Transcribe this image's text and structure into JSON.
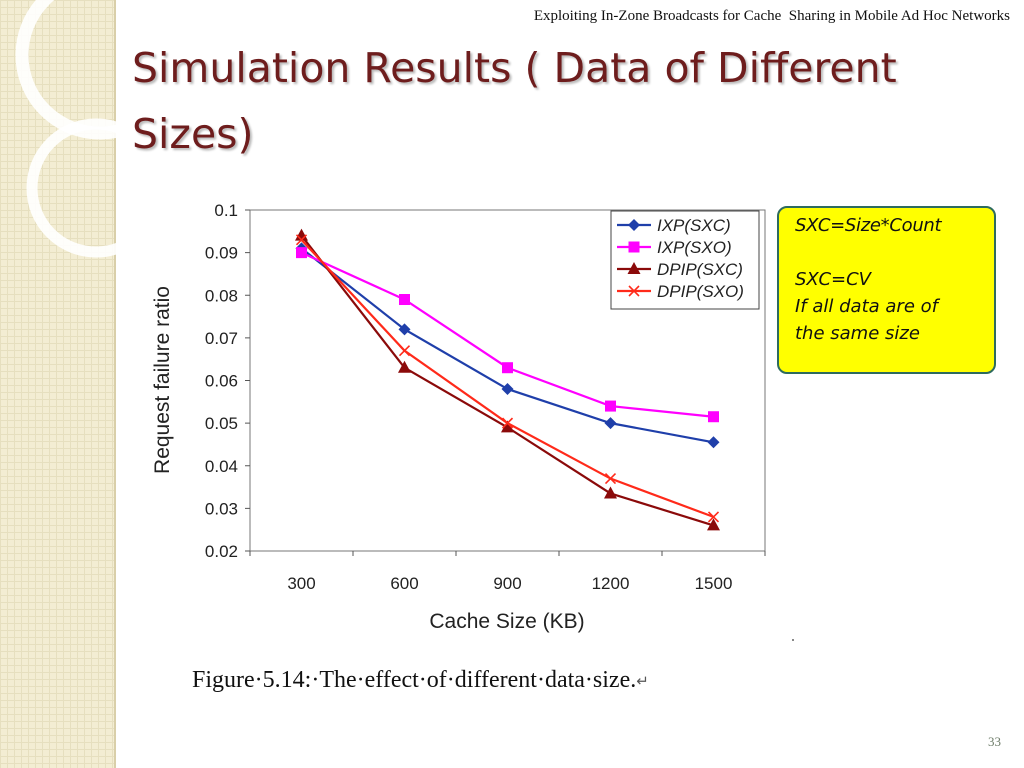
{
  "header": {
    "text": "Exploiting In-Zone Broadcasts for Cache  Sharing in Mobile Ad Hoc Networks"
  },
  "slide": {
    "title": "Simulation Results ( Data of Different Sizes)",
    "page_number": "33",
    "figure_caption": "Figure·5.14:·The·effect·of·different·data·size.",
    "caption_return_mark": "↵",
    "accent_color": "#6e1d1d"
  },
  "note_box": {
    "lines": [
      "SXC=Size*Count",
      "",
      "SXC=CV",
      "If all data are of",
      "the same size"
    ],
    "background": "#ffff00",
    "border_color": "#2e6b5e"
  },
  "chart_data": {
    "type": "line",
    "title": "",
    "xlabel": "Cache Size (KB)",
    "ylabel": "Request failure ratio",
    "categories": [
      "300",
      "600",
      "900",
      "1200",
      "1500"
    ],
    "ylim": [
      0.02,
      0.1
    ],
    "yticks": [
      "0.1",
      "0.09",
      "0.08",
      "0.07",
      "0.06",
      "0.05",
      "0.04",
      "0.03",
      "0.02"
    ],
    "grid": false,
    "legend_position": "top-right",
    "series": [
      {
        "name": "IXP(SXC)",
        "values": [
          0.091,
          0.072,
          0.058,
          0.05,
          0.0455
        ],
        "color": "#1f3faa",
        "marker": "diamond"
      },
      {
        "name": "IXP(SXO)",
        "values": [
          0.09,
          0.079,
          0.063,
          0.054,
          0.0515
        ],
        "color": "#ff00ff",
        "marker": "square"
      },
      {
        "name": "DPIP(SXC)",
        "values": [
          0.094,
          0.063,
          0.049,
          0.0335,
          0.026
        ],
        "color": "#8b0a0a",
        "marker": "triangle"
      },
      {
        "name": "DPIP(SXO)",
        "values": [
          0.093,
          0.067,
          0.05,
          0.037,
          0.028
        ],
        "color": "#ff2a1a",
        "marker": "x"
      }
    ]
  }
}
